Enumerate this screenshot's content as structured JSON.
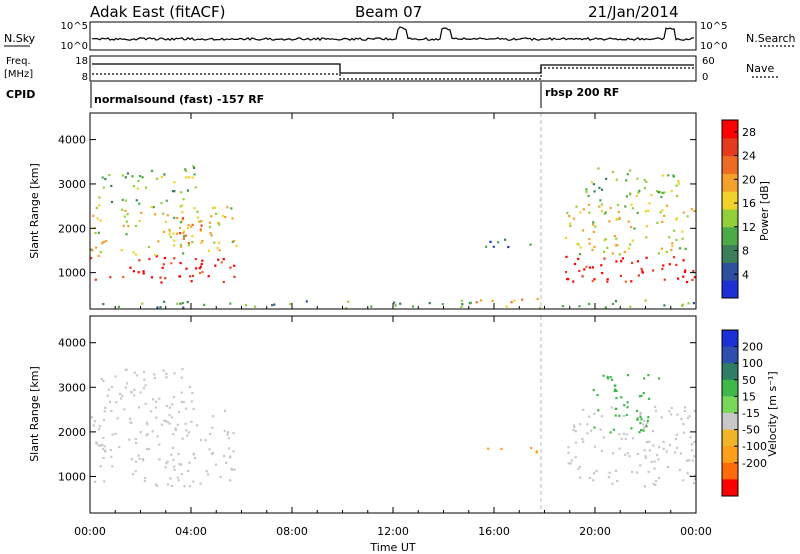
{
  "header": {
    "station": "Adak East (fitACF)",
    "beam": "Beam 07",
    "date": "21/Jan/2014"
  },
  "labels": {
    "nsky": "N.Sky",
    "nsearch": "N.Search",
    "freq": "Freq.",
    "mhz": "[MHz]",
    "nave": "Nave",
    "cpid": "CPID",
    "nsky_ticks": [
      "10^5",
      "10^0"
    ],
    "nsearch_ticks": [
      "10^5",
      "10^0"
    ],
    "freq_ticks": [
      "18",
      "8"
    ],
    "nave_ticks": [
      "60",
      "0"
    ],
    "cpid_segments": [
      {
        "text": "normalsound (fast) -157 RF",
        "start": 0
      },
      {
        "text": "rbsp 200 RF",
        "start": 18
      }
    ]
  },
  "colors": {
    "power": [
      "#1f2fd6",
      "#2d4f9e",
      "#3c7d5a",
      "#4bab46",
      "#93cf3a",
      "#f0d22a",
      "#f2a12c",
      "#ef6a24",
      "#e43b1f",
      "#ff0000"
    ],
    "velocity": [
      "#ff0000",
      "#ff6a0a",
      "#ff9f1c",
      "#f0b429",
      "#c8c8c8",
      "#c8c8c8",
      "#78d85a",
      "#3fb84a",
      "#2f7d64",
      "#2e4fae",
      "#1b2fd4"
    ]
  },
  "chart_data": [
    {
      "type": "heatmap",
      "name": "power",
      "xlabel": "Time UT",
      "ylabel": "Slant Range [km]",
      "x_range_hours": [
        0,
        24
      ],
      "ylim": [
        180,
        4600
      ],
      "xticks": [
        "00:00",
        "04:00",
        "08:00",
        "12:00",
        "16:00",
        "20:00",
        "00:00"
      ],
      "yticks": [
        1000,
        2000,
        3000,
        4000
      ],
      "colorbar": {
        "label": "Power [dB]",
        "ticks": [
          4,
          8,
          12,
          16,
          20,
          24,
          28
        ],
        "range": [
          0,
          30
        ]
      },
      "regions": [
        {
          "t0": 0.0,
          "t1": 5.7,
          "r0": 800,
          "r1": 1400,
          "value": 28
        },
        {
          "t0": 0.0,
          "t1": 5.8,
          "r0": 1400,
          "r1": 2500,
          "value": 16
        },
        {
          "t0": 0.3,
          "t1": 4.2,
          "r0": 2500,
          "r1": 3500,
          "value": 12
        },
        {
          "t0": 3.0,
          "t1": 4.5,
          "r0": 1500,
          "r1": 2300,
          "value": 22
        },
        {
          "t0": 15.6,
          "t1": 17.8,
          "r0": 1550,
          "r1": 1800,
          "value": 6
        },
        {
          "t0": 15.0,
          "t1": 17.8,
          "r0": 250,
          "r1": 450,
          "value": 18
        },
        {
          "t0": 18.8,
          "t1": 24.0,
          "r0": 800,
          "r1": 1400,
          "value": 28
        },
        {
          "t0": 18.8,
          "t1": 24.0,
          "r0": 1400,
          "r1": 2600,
          "value": 16
        },
        {
          "t0": 19.5,
          "t1": 23.5,
          "r0": 2600,
          "r1": 3400,
          "value": 12
        },
        {
          "t0": 0.0,
          "t1": 24.0,
          "r0": 200,
          "r1": 400,
          "value": 10
        }
      ]
    },
    {
      "type": "heatmap",
      "name": "velocity",
      "xlabel": "Time UT",
      "ylabel": "Slant Range [km]",
      "x_range_hours": [
        0,
        24
      ],
      "ylim": [
        180,
        4600
      ],
      "xticks": [
        "00:00",
        "04:00",
        "08:00",
        "12:00",
        "16:00",
        "20:00",
        "00:00"
      ],
      "yticks": [
        1000,
        2000,
        3000,
        4000
      ],
      "colorbar": {
        "label": "Velocity [m s⁻¹]",
        "ticks": [
          200,
          100,
          50,
          15,
          -15,
          -50,
          -100,
          -200
        ]
      },
      "regions": [
        {
          "t0": 0.0,
          "t1": 5.7,
          "r0": 800,
          "r1": 2500,
          "value": 0
        },
        {
          "t0": 0.3,
          "t1": 4.2,
          "r0": 2500,
          "r1": 3500,
          "value": 0
        },
        {
          "t0": 15.6,
          "t1": 17.8,
          "r0": 1550,
          "r1": 1800,
          "value": -60
        },
        {
          "t0": 18.8,
          "t1": 24.0,
          "r0": 800,
          "r1": 2600,
          "value": 0
        },
        {
          "t0": 19.8,
          "t1": 22.5,
          "r0": 2000,
          "r1": 3300,
          "value": 40
        }
      ]
    }
  ]
}
